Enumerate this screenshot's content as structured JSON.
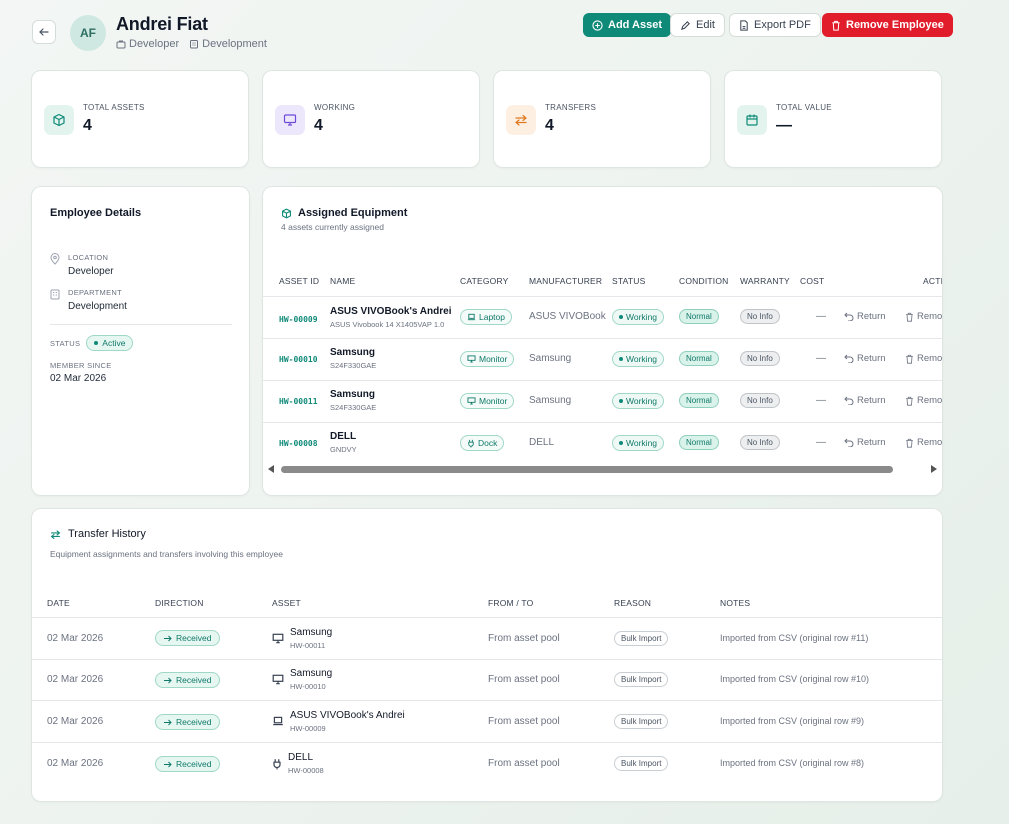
{
  "header": {
    "initials": "AF",
    "name": "Andrei Fiat",
    "role": "Developer",
    "department": "Development",
    "buttons": {
      "add_asset": "Add Asset",
      "edit": "Edit",
      "export_pdf": "Export PDF",
      "remove_employee": "Remove Employee"
    }
  },
  "stats": [
    {
      "label": "TOTAL ASSETS",
      "value": "4",
      "icon": "cube-icon",
      "color": "#0f8a78",
      "bg": "#e3f4ef"
    },
    {
      "label": "WORKING",
      "value": "4",
      "icon": "monitor-icon",
      "color": "#6d4bd8",
      "bg": "#ece7fb"
    },
    {
      "label": "TRANSFERS",
      "value": "4",
      "icon": "arrows-icon",
      "color": "#e07a1f",
      "bg": "#fdf0e3"
    },
    {
      "label": "TOTAL VALUE",
      "value": "—",
      "icon": "calendar-icon",
      "color": "#0f8a78",
      "bg": "#e3f4ef"
    }
  ],
  "details": {
    "title": "Employee Details",
    "location_label": "LOCATION",
    "location": "Developer",
    "department_label": "DEPARTMENT",
    "department": "Development",
    "status_label": "STATUS",
    "status": "Active",
    "member_since_label": "MEMBER SINCE",
    "member_since": "02 Mar 2026"
  },
  "equipment": {
    "title": "Assigned Equipment",
    "subtitle": "4 assets currently assigned",
    "columns": [
      "ASSET ID",
      "NAME",
      "CATEGORY",
      "MANUFACTURER",
      "STATUS",
      "CONDITION",
      "WARRANTY",
      "COST",
      "ACTI"
    ],
    "rows": [
      {
        "id": "HW-00009",
        "name": "ASUS VIVOBook's Andrei",
        "model": "ASUS Vivobook 14 X1405VAP 1.0",
        "category": "Laptop",
        "category_icon": "laptop-icon",
        "manufacturer": "ASUS VIVOBook",
        "status": "Working",
        "condition": "Normal",
        "warranty": "No Info",
        "cost": "—",
        "return_label": "Return",
        "remove_label": "Remo"
      },
      {
        "id": "HW-00010",
        "name": "Samsung",
        "model": "S24F330GAE",
        "category": "Monitor",
        "category_icon": "monitor-icon",
        "manufacturer": "Samsung",
        "status": "Working",
        "condition": "Normal",
        "warranty": "No Info",
        "cost": "—",
        "return_label": "Return",
        "remove_label": "Remo"
      },
      {
        "id": "HW-00011",
        "name": "Samsung",
        "model": "S24F330GAE",
        "category": "Monitor",
        "category_icon": "monitor-icon",
        "manufacturer": "Samsung",
        "status": "Working",
        "condition": "Normal",
        "warranty": "No Info",
        "cost": "—",
        "return_label": "Return",
        "remove_label": "Remo"
      },
      {
        "id": "HW-00008",
        "name": "DELL",
        "model": "GNDVY",
        "category": "Dock",
        "category_icon": "plug-icon",
        "manufacturer": "DELL",
        "status": "Working",
        "condition": "Normal",
        "warranty": "No Info",
        "cost": "—",
        "return_label": "Return",
        "remove_label": "Remo"
      }
    ]
  },
  "history": {
    "title": "Transfer History",
    "subtitle": "Equipment assignments and transfers involving this employee",
    "columns": [
      "DATE",
      "DIRECTION",
      "ASSET",
      "FROM / TO",
      "REASON",
      "NOTES"
    ],
    "rows": [
      {
        "date": "02 Mar 2026",
        "direction": "Received",
        "asset_icon": "monitor-icon",
        "asset": "Samsung",
        "asset_id": "HW-00011",
        "from_to": "From asset pool",
        "reason": "Bulk Import",
        "notes": "Imported from CSV (original row #11)"
      },
      {
        "date": "02 Mar 2026",
        "direction": "Received",
        "asset_icon": "monitor-icon",
        "asset": "Samsung",
        "asset_id": "HW-00010",
        "from_to": "From asset pool",
        "reason": "Bulk Import",
        "notes": "Imported from CSV (original row #10)"
      },
      {
        "date": "02 Mar 2026",
        "direction": "Received",
        "asset_icon": "laptop-icon",
        "asset": "ASUS VIVOBook's Andrei",
        "asset_id": "HW-00009",
        "from_to": "From asset pool",
        "reason": "Bulk Import",
        "notes": "Imported from CSV (original row #9)"
      },
      {
        "date": "02 Mar 2026",
        "direction": "Received",
        "asset_icon": "plug-icon",
        "asset": "DELL",
        "asset_id": "HW-00008",
        "from_to": "From asset pool",
        "reason": "Bulk Import",
        "notes": "Imported from CSV (original row #8)"
      }
    ]
  }
}
